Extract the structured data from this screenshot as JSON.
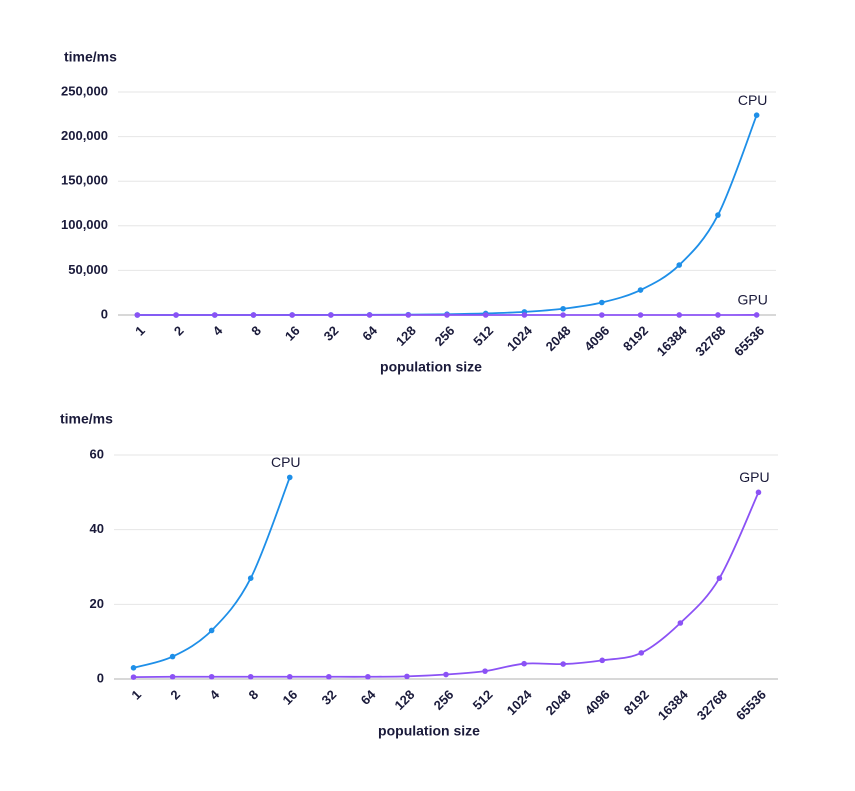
{
  "chart_data": [
    {
      "type": "line",
      "y_label": "time/ms",
      "x_label": "population size",
      "categories": [
        "1",
        "2",
        "4",
        "8",
        "16",
        "32",
        "64",
        "128",
        "256",
        "512",
        "1024",
        "2048",
        "4096",
        "8192",
        "16384",
        "32768",
        "65536"
      ],
      "series": [
        {
          "name": "CPU",
          "color": "#1e8fe8",
          "values": [
            3,
            6,
            13,
            27,
            54,
            108,
            216,
            430,
            870,
            1750,
            3500,
            7000,
            14000,
            28000,
            56000,
            112000,
            224000
          ]
        },
        {
          "name": "GPU",
          "color": "#8b52f5",
          "values": [
            0.5,
            0.6,
            0.6,
            0.6,
            0.6,
            0.6,
            0.6,
            0.7,
            1.2,
            2.1,
            4.1,
            4,
            5,
            7,
            15,
            27,
            50
          ]
        }
      ],
      "ylim": [
        0,
        250000
      ],
      "yticks": [
        0,
        {
          "value": 50000,
          "label": "50,000"
        },
        {
          "value": 100000,
          "label": "100,000"
        },
        {
          "value": 150000,
          "label": "150,000"
        },
        {
          "value": 200000,
          "label": "200,000"
        },
        {
          "value": 250000,
          "label": "250,000"
        }
      ],
      "grid": true
    },
    {
      "type": "line",
      "y_label": "time/ms",
      "x_label": "population size",
      "categories": [
        "1",
        "2",
        "4",
        "8",
        "16",
        "32",
        "64",
        "128",
        "256",
        "512",
        "1024",
        "2048",
        "4096",
        "8192",
        "16384",
        "32768",
        "65536"
      ],
      "series": [
        {
          "name": "CPU",
          "color": "#1e8fe8",
          "values": [
            3,
            6,
            13,
            27,
            54,
            null,
            null,
            null,
            null,
            null,
            null,
            null,
            null,
            null,
            null,
            null,
            null
          ]
        },
        {
          "name": "GPU",
          "color": "#8b52f5",
          "values": [
            0.5,
            0.6,
            0.6,
            0.6,
            0.6,
            0.6,
            0.6,
            0.7,
            1.2,
            2.1,
            4.1,
            4,
            5,
            7,
            15,
            27,
            50
          ]
        }
      ],
      "ylim": [
        0,
        60
      ],
      "yticks": [
        0,
        20,
        40,
        60
      ],
      "grid": true
    }
  ]
}
